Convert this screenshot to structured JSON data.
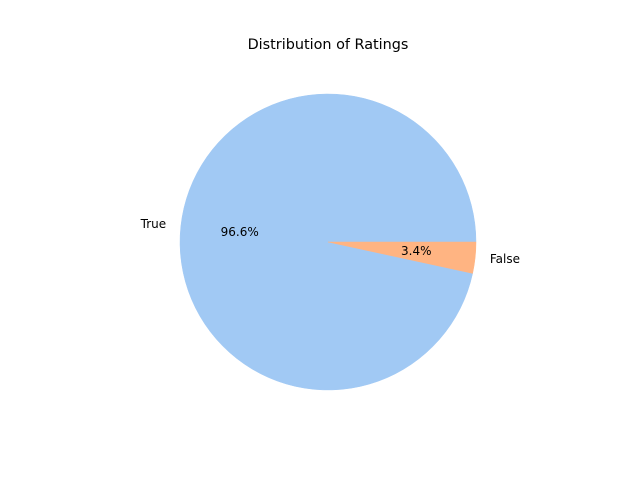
{
  "chart_data": {
    "type": "pie",
    "title": "Distribution of Ratings",
    "categories": [
      "True",
      "False"
    ],
    "values": [
      96.6,
      3.4
    ],
    "percent_labels": [
      "96.6%",
      "3.4%"
    ],
    "colors": [
      "#a1c9f4",
      "#ffb482"
    ]
  }
}
